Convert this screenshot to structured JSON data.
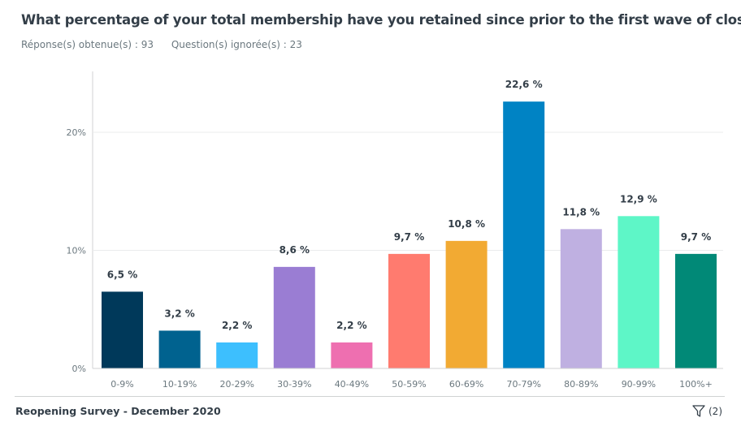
{
  "header": {
    "title": "What percentage of your total membership have you retained since prior to the first wave of closur...",
    "answered": "Réponse(s) obtenue(s) : 93",
    "skipped": "Question(s) ignorée(s) : 23"
  },
  "chart_data": {
    "type": "bar",
    "categories": [
      "0-9%",
      "10-19%",
      "20-29%",
      "30-39%",
      "40-49%",
      "50-59%",
      "60-69%",
      "70-79%",
      "80-89%",
      "90-99%",
      "100%+"
    ],
    "values": [
      6.5,
      3.2,
      2.2,
      8.6,
      2.2,
      9.7,
      10.8,
      22.6,
      11.8,
      12.9,
      9.7
    ],
    "data_labels": [
      "6,5 %",
      "3,2 %",
      "2,2 %",
      "8,6 %",
      "2,2 %",
      "9,7 %",
      "10,8 %",
      "22,6 %",
      "11,8 %",
      "12,9 %",
      "9,7 %"
    ],
    "colors": [
      "#00395a",
      "#00628f",
      "#3dbffe",
      "#9a7dd3",
      "#ee6fb0",
      "#ff7b6f",
      "#f2aa33",
      "#0083c4",
      "#bfb0e1",
      "#5ef6c7",
      "#018977"
    ],
    "yticks": [
      0,
      10,
      20
    ],
    "ytick_labels": [
      "0%",
      "10%",
      "20%"
    ],
    "ylim": [
      0,
      25
    ],
    "grid": true,
    "legend": "none"
  },
  "footer": {
    "survey_name": "Reopening Survey - December 2020",
    "filter_count": "(2)",
    "filter_icon": "funnel-icon"
  }
}
